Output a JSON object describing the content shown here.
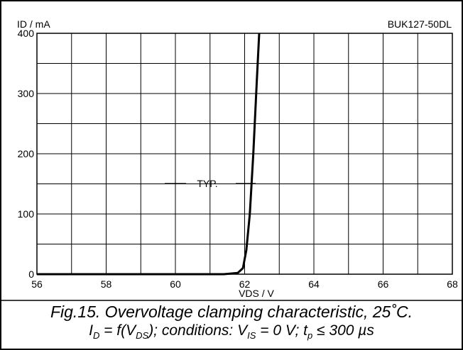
{
  "chart_data": {
    "type": "line",
    "part_number": "BUK127-50DL",
    "ylabel": "ID / mA",
    "xlabel": "VDS / V",
    "xlim": [
      56,
      68
    ],
    "ylim": [
      0,
      400
    ],
    "x_ticks": [
      56,
      58,
      60,
      62,
      64,
      66,
      68
    ],
    "y_ticks": [
      0,
      100,
      200,
      300,
      400
    ],
    "grid": true,
    "curve_label": "TYP.",
    "series": [
      {
        "values": [
          {
            "x": 56.0,
            "y": 0
          },
          {
            "x": 60.0,
            "y": 0
          },
          {
            "x": 61.4,
            "y": 0
          },
          {
            "x": 61.8,
            "y": 2
          },
          {
            "x": 61.95,
            "y": 10
          },
          {
            "x": 62.05,
            "y": 40
          },
          {
            "x": 62.15,
            "y": 100
          },
          {
            "x": 62.25,
            "y": 200
          },
          {
            "x": 62.35,
            "y": 320
          },
          {
            "x": 62.42,
            "y": 400
          }
        ]
      }
    ]
  },
  "caption": {
    "line1": "Fig.15.   Overvoltage clamping characteristic, 25˚C.",
    "line2_parts": {
      "i": "I",
      "i_sub": "D",
      "eq": " = f(V",
      "vds_sub": "DS",
      "cond": "); conditions: V",
      "vis_sub": "IS",
      "rest": " = 0 V; t",
      "tp_sub": "p",
      "end": " ≤ 300 µs"
    }
  }
}
